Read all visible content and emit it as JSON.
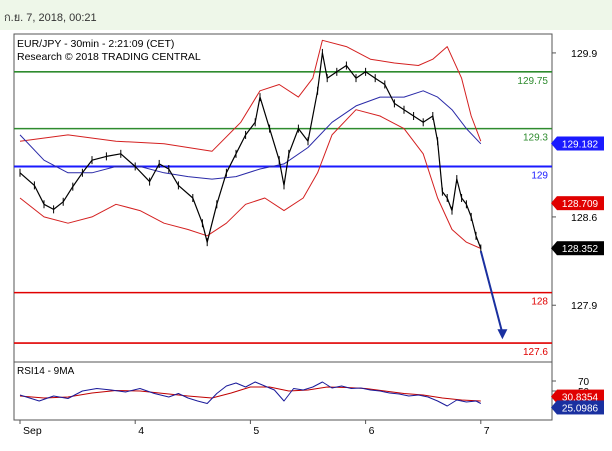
{
  "header": {
    "timestamp": "ก.ย. 7, 2018, 00:21"
  },
  "colors": {
    "resistance": "#2e8b2e",
    "support": "#e00000",
    "pivot": "#1a1aff",
    "price": "#000000",
    "bollinger": "#d42020",
    "ma": "#2a2aa8",
    "rsi": "#1a1a9a",
    "rsi_ma": "#c00000",
    "arrow": "#1a30a0"
  },
  "chart_data": [
    {
      "type": "line",
      "title": "EUR/JPY - 30min - 2:21:09 (CET)",
      "subtitle": "Research © 2018 TRADING CENTRAL",
      "ylim": [
        127.45,
        130.05
      ],
      "y_ticks": [
        "129.9",
        "128.6",
        "127.9"
      ],
      "x_ticks": [
        {
          "label": "Sep",
          "t": 0
        },
        {
          "label": "4",
          "t": 48
        },
        {
          "label": "5",
          "t": 96
        },
        {
          "label": "6",
          "t": 144
        },
        {
          "label": "7",
          "t": 192
        }
      ],
      "levels": [
        {
          "value": 129.75,
          "label": "129.75",
          "kind": "resistance"
        },
        {
          "value": 129.3,
          "label": "129.3",
          "kind": "resistance"
        },
        {
          "value": 129.0,
          "label": "129",
          "kind": "pivot"
        },
        {
          "value": 128.0,
          "label": "128",
          "kind": "support"
        },
        {
          "value": 127.6,
          "label": "127.6",
          "kind": "support"
        }
      ],
      "price_tags": [
        {
          "value": 129.182,
          "label": "129.182",
          "color": "#1a1aff",
          "text_color": "#ffffff"
        },
        {
          "value": 128.709,
          "label": "128.709",
          "color": "#e00000",
          "text_color": "#ffffff"
        },
        {
          "value": 128.352,
          "label": "128.352",
          "color": "#000000",
          "text_color": "#ffffff"
        }
      ],
      "projection": {
        "from": [
          192,
          128.33
        ],
        "to": [
          201,
          127.63
        ]
      },
      "close": [
        {
          "t": 0,
          "v": 128.95
        },
        {
          "t": 6,
          "v": 128.85
        },
        {
          "t": 10,
          "v": 128.7
        },
        {
          "t": 14,
          "v": 128.66
        },
        {
          "t": 18,
          "v": 128.72
        },
        {
          "t": 22,
          "v": 128.84
        },
        {
          "t": 26,
          "v": 128.95
        },
        {
          "t": 30,
          "v": 129.05
        },
        {
          "t": 36,
          "v": 129.08
        },
        {
          "t": 42,
          "v": 129.1
        },
        {
          "t": 48,
          "v": 129.0
        },
        {
          "t": 54,
          "v": 128.88
        },
        {
          "t": 58,
          "v": 129.02
        },
        {
          "t": 62,
          "v": 128.98
        },
        {
          "t": 66,
          "v": 128.85
        },
        {
          "t": 72,
          "v": 128.75
        },
        {
          "t": 76,
          "v": 128.55
        },
        {
          "t": 78,
          "v": 128.4
        },
        {
          "t": 82,
          "v": 128.7
        },
        {
          "t": 86,
          "v": 128.95
        },
        {
          "t": 90,
          "v": 129.1
        },
        {
          "t": 94,
          "v": 129.25
        },
        {
          "t": 98,
          "v": 129.35
        },
        {
          "t": 100,
          "v": 129.55
        },
        {
          "t": 104,
          "v": 129.3
        },
        {
          "t": 108,
          "v": 129.05
        },
        {
          "t": 110,
          "v": 128.85
        },
        {
          "t": 112,
          "v": 129.1
        },
        {
          "t": 116,
          "v": 129.3
        },
        {
          "t": 120,
          "v": 129.2
        },
        {
          "t": 124,
          "v": 129.6
        },
        {
          "t": 126,
          "v": 129.9
        },
        {
          "t": 128,
          "v": 129.7
        },
        {
          "t": 132,
          "v": 129.75
        },
        {
          "t": 136,
          "v": 129.8
        },
        {
          "t": 140,
          "v": 129.7
        },
        {
          "t": 144,
          "v": 129.75
        },
        {
          "t": 148,
          "v": 129.7
        },
        {
          "t": 152,
          "v": 129.65
        },
        {
          "t": 156,
          "v": 129.5
        },
        {
          "t": 160,
          "v": 129.45
        },
        {
          "t": 164,
          "v": 129.4
        },
        {
          "t": 168,
          "v": 129.35
        },
        {
          "t": 172,
          "v": 129.4
        },
        {
          "t": 174,
          "v": 129.2
        },
        {
          "t": 176,
          "v": 128.8
        },
        {
          "t": 178,
          "v": 128.75
        },
        {
          "t": 180,
          "v": 128.65
        },
        {
          "t": 182,
          "v": 128.9
        },
        {
          "t": 184,
          "v": 128.75
        },
        {
          "t": 186,
          "v": 128.7
        },
        {
          "t": 188,
          "v": 128.6
        },
        {
          "t": 190,
          "v": 128.45
        },
        {
          "t": 192,
          "v": 128.35
        }
      ],
      "bollinger_upper": [
        {
          "t": 0,
          "v": 129.2
        },
        {
          "t": 20,
          "v": 129.25
        },
        {
          "t": 40,
          "v": 129.2
        },
        {
          "t": 60,
          "v": 129.18
        },
        {
          "t": 80,
          "v": 129.12
        },
        {
          "t": 92,
          "v": 129.35
        },
        {
          "t": 100,
          "v": 129.6
        },
        {
          "t": 108,
          "v": 129.65
        },
        {
          "t": 116,
          "v": 129.55
        },
        {
          "t": 122,
          "v": 129.7
        },
        {
          "t": 126,
          "v": 130.0
        },
        {
          "t": 136,
          "v": 129.95
        },
        {
          "t": 146,
          "v": 129.85
        },
        {
          "t": 156,
          "v": 129.82
        },
        {
          "t": 166,
          "v": 129.8
        },
        {
          "t": 172,
          "v": 129.85
        },
        {
          "t": 178,
          "v": 129.95
        },
        {
          "t": 184,
          "v": 129.7
        },
        {
          "t": 188,
          "v": 129.4
        },
        {
          "t": 192,
          "v": 129.2
        }
      ],
      "bollinger_lower": [
        {
          "t": 0,
          "v": 128.75
        },
        {
          "t": 10,
          "v": 128.6
        },
        {
          "t": 20,
          "v": 128.55
        },
        {
          "t": 30,
          "v": 128.6
        },
        {
          "t": 40,
          "v": 128.7
        },
        {
          "t": 50,
          "v": 128.65
        },
        {
          "t": 60,
          "v": 128.55
        },
        {
          "t": 70,
          "v": 128.5
        },
        {
          "t": 78,
          "v": 128.45
        },
        {
          "t": 86,
          "v": 128.55
        },
        {
          "t": 94,
          "v": 128.7
        },
        {
          "t": 102,
          "v": 128.75
        },
        {
          "t": 110,
          "v": 128.65
        },
        {
          "t": 118,
          "v": 128.75
        },
        {
          "t": 124,
          "v": 128.95
        },
        {
          "t": 130,
          "v": 129.25
        },
        {
          "t": 140,
          "v": 129.45
        },
        {
          "t": 150,
          "v": 129.4
        },
        {
          "t": 160,
          "v": 129.3
        },
        {
          "t": 168,
          "v": 129.1
        },
        {
          "t": 174,
          "v": 128.75
        },
        {
          "t": 180,
          "v": 128.5
        },
        {
          "t": 186,
          "v": 128.4
        },
        {
          "t": 192,
          "v": 128.35
        }
      ],
      "ma": [
        {
          "t": 0,
          "v": 129.25
        },
        {
          "t": 10,
          "v": 129.05
        },
        {
          "t": 20,
          "v": 128.95
        },
        {
          "t": 30,
          "v": 128.95
        },
        {
          "t": 40,
          "v": 129.0
        },
        {
          "t": 50,
          "v": 129.0
        },
        {
          "t": 60,
          "v": 128.95
        },
        {
          "t": 70,
          "v": 128.92
        },
        {
          "t": 80,
          "v": 128.9
        },
        {
          "t": 90,
          "v": 128.92
        },
        {
          "t": 100,
          "v": 128.98
        },
        {
          "t": 110,
          "v": 129.02
        },
        {
          "t": 120,
          "v": 129.15
        },
        {
          "t": 130,
          "v": 129.35
        },
        {
          "t": 140,
          "v": 129.48
        },
        {
          "t": 150,
          "v": 129.55
        },
        {
          "t": 160,
          "v": 129.55
        },
        {
          "t": 168,
          "v": 129.6
        },
        {
          "t": 174,
          "v": 129.55
        },
        {
          "t": 180,
          "v": 129.45
        },
        {
          "t": 186,
          "v": 129.3
        },
        {
          "t": 192,
          "v": 129.18
        }
      ]
    },
    {
      "type": "line",
      "title": "RSI14 - 9MA",
      "ylim": [
        0,
        100
      ],
      "y_ticks": [
        "70",
        "50"
      ],
      "value_tags": [
        {
          "value": 30.8354,
          "label": "30.8354",
          "color": "#e00000",
          "text_color": "#ffffff"
        },
        {
          "value": 25.0986,
          "label": "25.0986",
          "color": "#1a30a0",
          "text_color": "#ffffff"
        }
      ],
      "rsi": [
        {
          "t": 0,
          "v": 42
        },
        {
          "t": 8,
          "v": 30
        },
        {
          "t": 14,
          "v": 40
        },
        {
          "t": 20,
          "v": 35
        },
        {
          "t": 26,
          "v": 50
        },
        {
          "t": 32,
          "v": 55
        },
        {
          "t": 38,
          "v": 52
        },
        {
          "t": 44,
          "v": 48
        },
        {
          "t": 50,
          "v": 55
        },
        {
          "t": 56,
          "v": 45
        },
        {
          "t": 62,
          "v": 38
        },
        {
          "t": 66,
          "v": 45
        },
        {
          "t": 70,
          "v": 36
        },
        {
          "t": 74,
          "v": 30
        },
        {
          "t": 78,
          "v": 25
        },
        {
          "t": 82,
          "v": 45
        },
        {
          "t": 86,
          "v": 60
        },
        {
          "t": 90,
          "v": 66
        },
        {
          "t": 94,
          "v": 58
        },
        {
          "t": 98,
          "v": 68
        },
        {
          "t": 102,
          "v": 60
        },
        {
          "t": 106,
          "v": 52
        },
        {
          "t": 110,
          "v": 30
        },
        {
          "t": 114,
          "v": 55
        },
        {
          "t": 118,
          "v": 52
        },
        {
          "t": 122,
          "v": 58
        },
        {
          "t": 126,
          "v": 68
        },
        {
          "t": 130,
          "v": 56
        },
        {
          "t": 134,
          "v": 60
        },
        {
          "t": 138,
          "v": 55
        },
        {
          "t": 142,
          "v": 56
        },
        {
          "t": 146,
          "v": 52
        },
        {
          "t": 150,
          "v": 50
        },
        {
          "t": 154,
          "v": 46
        },
        {
          "t": 158,
          "v": 44
        },
        {
          "t": 162,
          "v": 40
        },
        {
          "t": 166,
          "v": 42
        },
        {
          "t": 170,
          "v": 38
        },
        {
          "t": 174,
          "v": 30
        },
        {
          "t": 178,
          "v": 20
        },
        {
          "t": 182,
          "v": 32
        },
        {
          "t": 186,
          "v": 28
        },
        {
          "t": 190,
          "v": 30
        },
        {
          "t": 192,
          "v": 25
        }
      ],
      "rsi_ma": [
        {
          "t": 0,
          "v": 40
        },
        {
          "t": 10,
          "v": 36
        },
        {
          "t": 20,
          "v": 38
        },
        {
          "t": 30,
          "v": 46
        },
        {
          "t": 40,
          "v": 51
        },
        {
          "t": 50,
          "v": 50
        },
        {
          "t": 60,
          "v": 45
        },
        {
          "t": 70,
          "v": 40
        },
        {
          "t": 80,
          "v": 36
        },
        {
          "t": 88,
          "v": 46
        },
        {
          "t": 96,
          "v": 58
        },
        {
          "t": 104,
          "v": 58
        },
        {
          "t": 112,
          "v": 50
        },
        {
          "t": 120,
          "v": 52
        },
        {
          "t": 128,
          "v": 58
        },
        {
          "t": 136,
          "v": 57
        },
        {
          "t": 144,
          "v": 55
        },
        {
          "t": 152,
          "v": 50
        },
        {
          "t": 160,
          "v": 45
        },
        {
          "t": 168,
          "v": 42
        },
        {
          "t": 176,
          "v": 36
        },
        {
          "t": 184,
          "v": 32
        },
        {
          "t": 192,
          "v": 30
        }
      ]
    }
  ]
}
